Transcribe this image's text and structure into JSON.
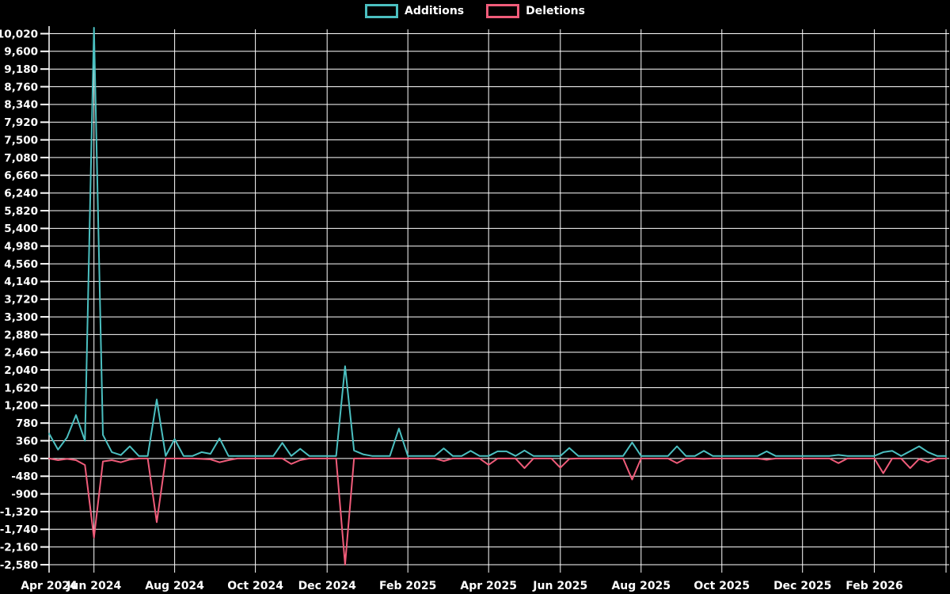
{
  "legend": {
    "items": [
      {
        "label": "Additions",
        "color": "#4bbfc0"
      },
      {
        "label": "Deletions",
        "color": "#f05c7a"
      }
    ]
  },
  "colors": {
    "background": "#000000",
    "grid": "#ffffff",
    "text": "#ffffff",
    "additions": "#4bbfc0",
    "deletions": "#f05c7a"
  },
  "y_axis": {
    "min": -2580,
    "max": 10020,
    "step": 420,
    "tick_labels": [
      "10,020",
      "9,600",
      "9,180",
      "8,760",
      "8,340",
      "7,920",
      "7,500",
      "7,080",
      "6,660",
      "6,240",
      "5,820",
      "5,400",
      "4,980",
      "4,560",
      "4,140",
      "3,720",
      "3,300",
      "2,880",
      "2,460",
      "2,040",
      "1,620",
      "1,200",
      "780",
      "360",
      "-60",
      "-480",
      "-900",
      "-1,320",
      "-1,740",
      "-2,160",
      "-2,580"
    ]
  },
  "x_axis": {
    "ticks": [
      {
        "label": "Apr 2024",
        "date": "2024-04-28"
      },
      {
        "label": "Jun 2024",
        "date": "2024-06-01"
      },
      {
        "label": "Aug 2024",
        "date": "2024-08-01"
      },
      {
        "label": "Oct 2024",
        "date": "2024-10-01"
      },
      {
        "label": "Dec 2024",
        "date": "2024-12-01"
      },
      {
        "label": "Feb 2025",
        "date": "2025-02-01"
      },
      {
        "label": "Apr 2025",
        "date": "2025-04-01"
      },
      {
        "label": "Jun 2025",
        "date": "2025-06-01"
      },
      {
        "label": "Aug 2025",
        "date": "2025-08-01"
      },
      {
        "label": "Oct 2025",
        "date": "2025-10-01"
      },
      {
        "label": "Dec 2025",
        "date": "2025-12-01"
      },
      {
        "label": "Feb 2026",
        "date": "2026-02-01"
      },
      {
        "label": "",
        "date": "2026-03-29"
      }
    ]
  },
  "chart_data": {
    "type": "line",
    "title": "",
    "xlabel": "",
    "ylabel": "",
    "grid": true,
    "legend_position": "top-center",
    "background": "#000000",
    "ylim": [
      -2580,
      10020
    ],
    "ytick_step": 420,
    "x": [
      "2024-04-28",
      "2024-05-05",
      "2024-05-12",
      "2024-05-19",
      "2024-05-26",
      "2024-06-02",
      "2024-06-09",
      "2024-06-16",
      "2024-06-23",
      "2024-06-30",
      "2024-07-07",
      "2024-07-14",
      "2024-07-21",
      "2024-07-28",
      "2024-08-04",
      "2024-08-11",
      "2024-08-18",
      "2024-08-25",
      "2024-09-01",
      "2024-09-08",
      "2024-09-15",
      "2024-09-22",
      "2024-09-29",
      "2024-10-06",
      "2024-10-13",
      "2024-10-20",
      "2024-10-27",
      "2024-11-03",
      "2024-11-10",
      "2024-11-17",
      "2024-11-24",
      "2024-12-01",
      "2024-12-08",
      "2024-12-15",
      "2024-12-22",
      "2024-12-29",
      "2025-01-05",
      "2025-01-12",
      "2025-01-19",
      "2025-01-26",
      "2025-02-02",
      "2025-02-09",
      "2025-02-16",
      "2025-02-23",
      "2025-03-02",
      "2025-03-09",
      "2025-03-16",
      "2025-03-23",
      "2025-03-30",
      "2025-04-06",
      "2025-04-13",
      "2025-04-20",
      "2025-04-27",
      "2025-05-04",
      "2025-05-11",
      "2025-05-18",
      "2025-05-25",
      "2025-06-01",
      "2025-06-08",
      "2025-06-15",
      "2025-06-22",
      "2025-06-29",
      "2025-07-06",
      "2025-07-13",
      "2025-07-20",
      "2025-07-27",
      "2025-08-03",
      "2025-08-10",
      "2025-08-17",
      "2025-08-24",
      "2025-08-31",
      "2025-09-07",
      "2025-09-14",
      "2025-09-21",
      "2025-09-28",
      "2025-10-05",
      "2025-10-12",
      "2025-10-19",
      "2025-10-26",
      "2025-11-02",
      "2025-11-09",
      "2025-11-16",
      "2025-11-23",
      "2025-11-30",
      "2025-12-07",
      "2025-12-14",
      "2025-12-21",
      "2025-12-28",
      "2026-01-04",
      "2026-01-11",
      "2026-01-18",
      "2026-01-25",
      "2026-02-01",
      "2026-02-08",
      "2026-02-15",
      "2026-02-22",
      "2026-03-01",
      "2026-03-08",
      "2026-03-15",
      "2026-03-22",
      "2026-03-29"
    ],
    "series": [
      {
        "name": "Additions",
        "color": "#4bbfc0",
        "values": [
          530,
          150,
          440,
          970,
          360,
          10160,
          500,
          90,
          20,
          230,
          0,
          0,
          1340,
          0,
          400,
          0,
          0,
          90,
          50,
          420,
          0,
          0,
          0,
          0,
          0,
          0,
          310,
          0,
          170,
          0,
          0,
          0,
          0,
          2130,
          130,
          40,
          0,
          0,
          0,
          650,
          0,
          0,
          0,
          0,
          180,
          0,
          0,
          120,
          0,
          0,
          110,
          110,
          0,
          130,
          0,
          0,
          0,
          0,
          190,
          0,
          0,
          0,
          0,
          0,
          0,
          320,
          0,
          0,
          0,
          0,
          230,
          0,
          0,
          120,
          0,
          0,
          0,
          0,
          0,
          0,
          110,
          0,
          0,
          0,
          0,
          0,
          0,
          0,
          25,
          0,
          0,
          0,
          0,
          90,
          120,
          0,
          115,
          230,
          90,
          0,
          0
        ]
      },
      {
        "name": "Deletions",
        "color": "#f05c7a",
        "values": [
          -60,
          -100,
          -70,
          -100,
          -215,
          -1940,
          -130,
          -100,
          -150,
          -85,
          -60,
          -60,
          -1570,
          -60,
          -60,
          -60,
          -60,
          -70,
          -80,
          -150,
          -100,
          -60,
          -60,
          -60,
          -60,
          -60,
          -60,
          -190,
          -100,
          -60,
          -60,
          -60,
          -60,
          -2580,
          -60,
          -60,
          -60,
          -60,
          -60,
          -60,
          -60,
          -60,
          -60,
          -60,
          -120,
          -60,
          -60,
          -60,
          -60,
          -210,
          -60,
          -60,
          -60,
          -290,
          -60,
          -60,
          -60,
          -280,
          -70,
          -60,
          -60,
          -60,
          -60,
          -60,
          -60,
          -560,
          -60,
          -60,
          -60,
          -60,
          -170,
          -60,
          -60,
          -70,
          -60,
          -60,
          -60,
          -60,
          -60,
          -60,
          -90,
          -60,
          -60,
          -60,
          -60,
          -60,
          -60,
          -60,
          -170,
          -60,
          -60,
          -60,
          -60,
          -410,
          -60,
          -60,
          -290,
          -70,
          -150,
          -60,
          -60
        ]
      }
    ]
  }
}
